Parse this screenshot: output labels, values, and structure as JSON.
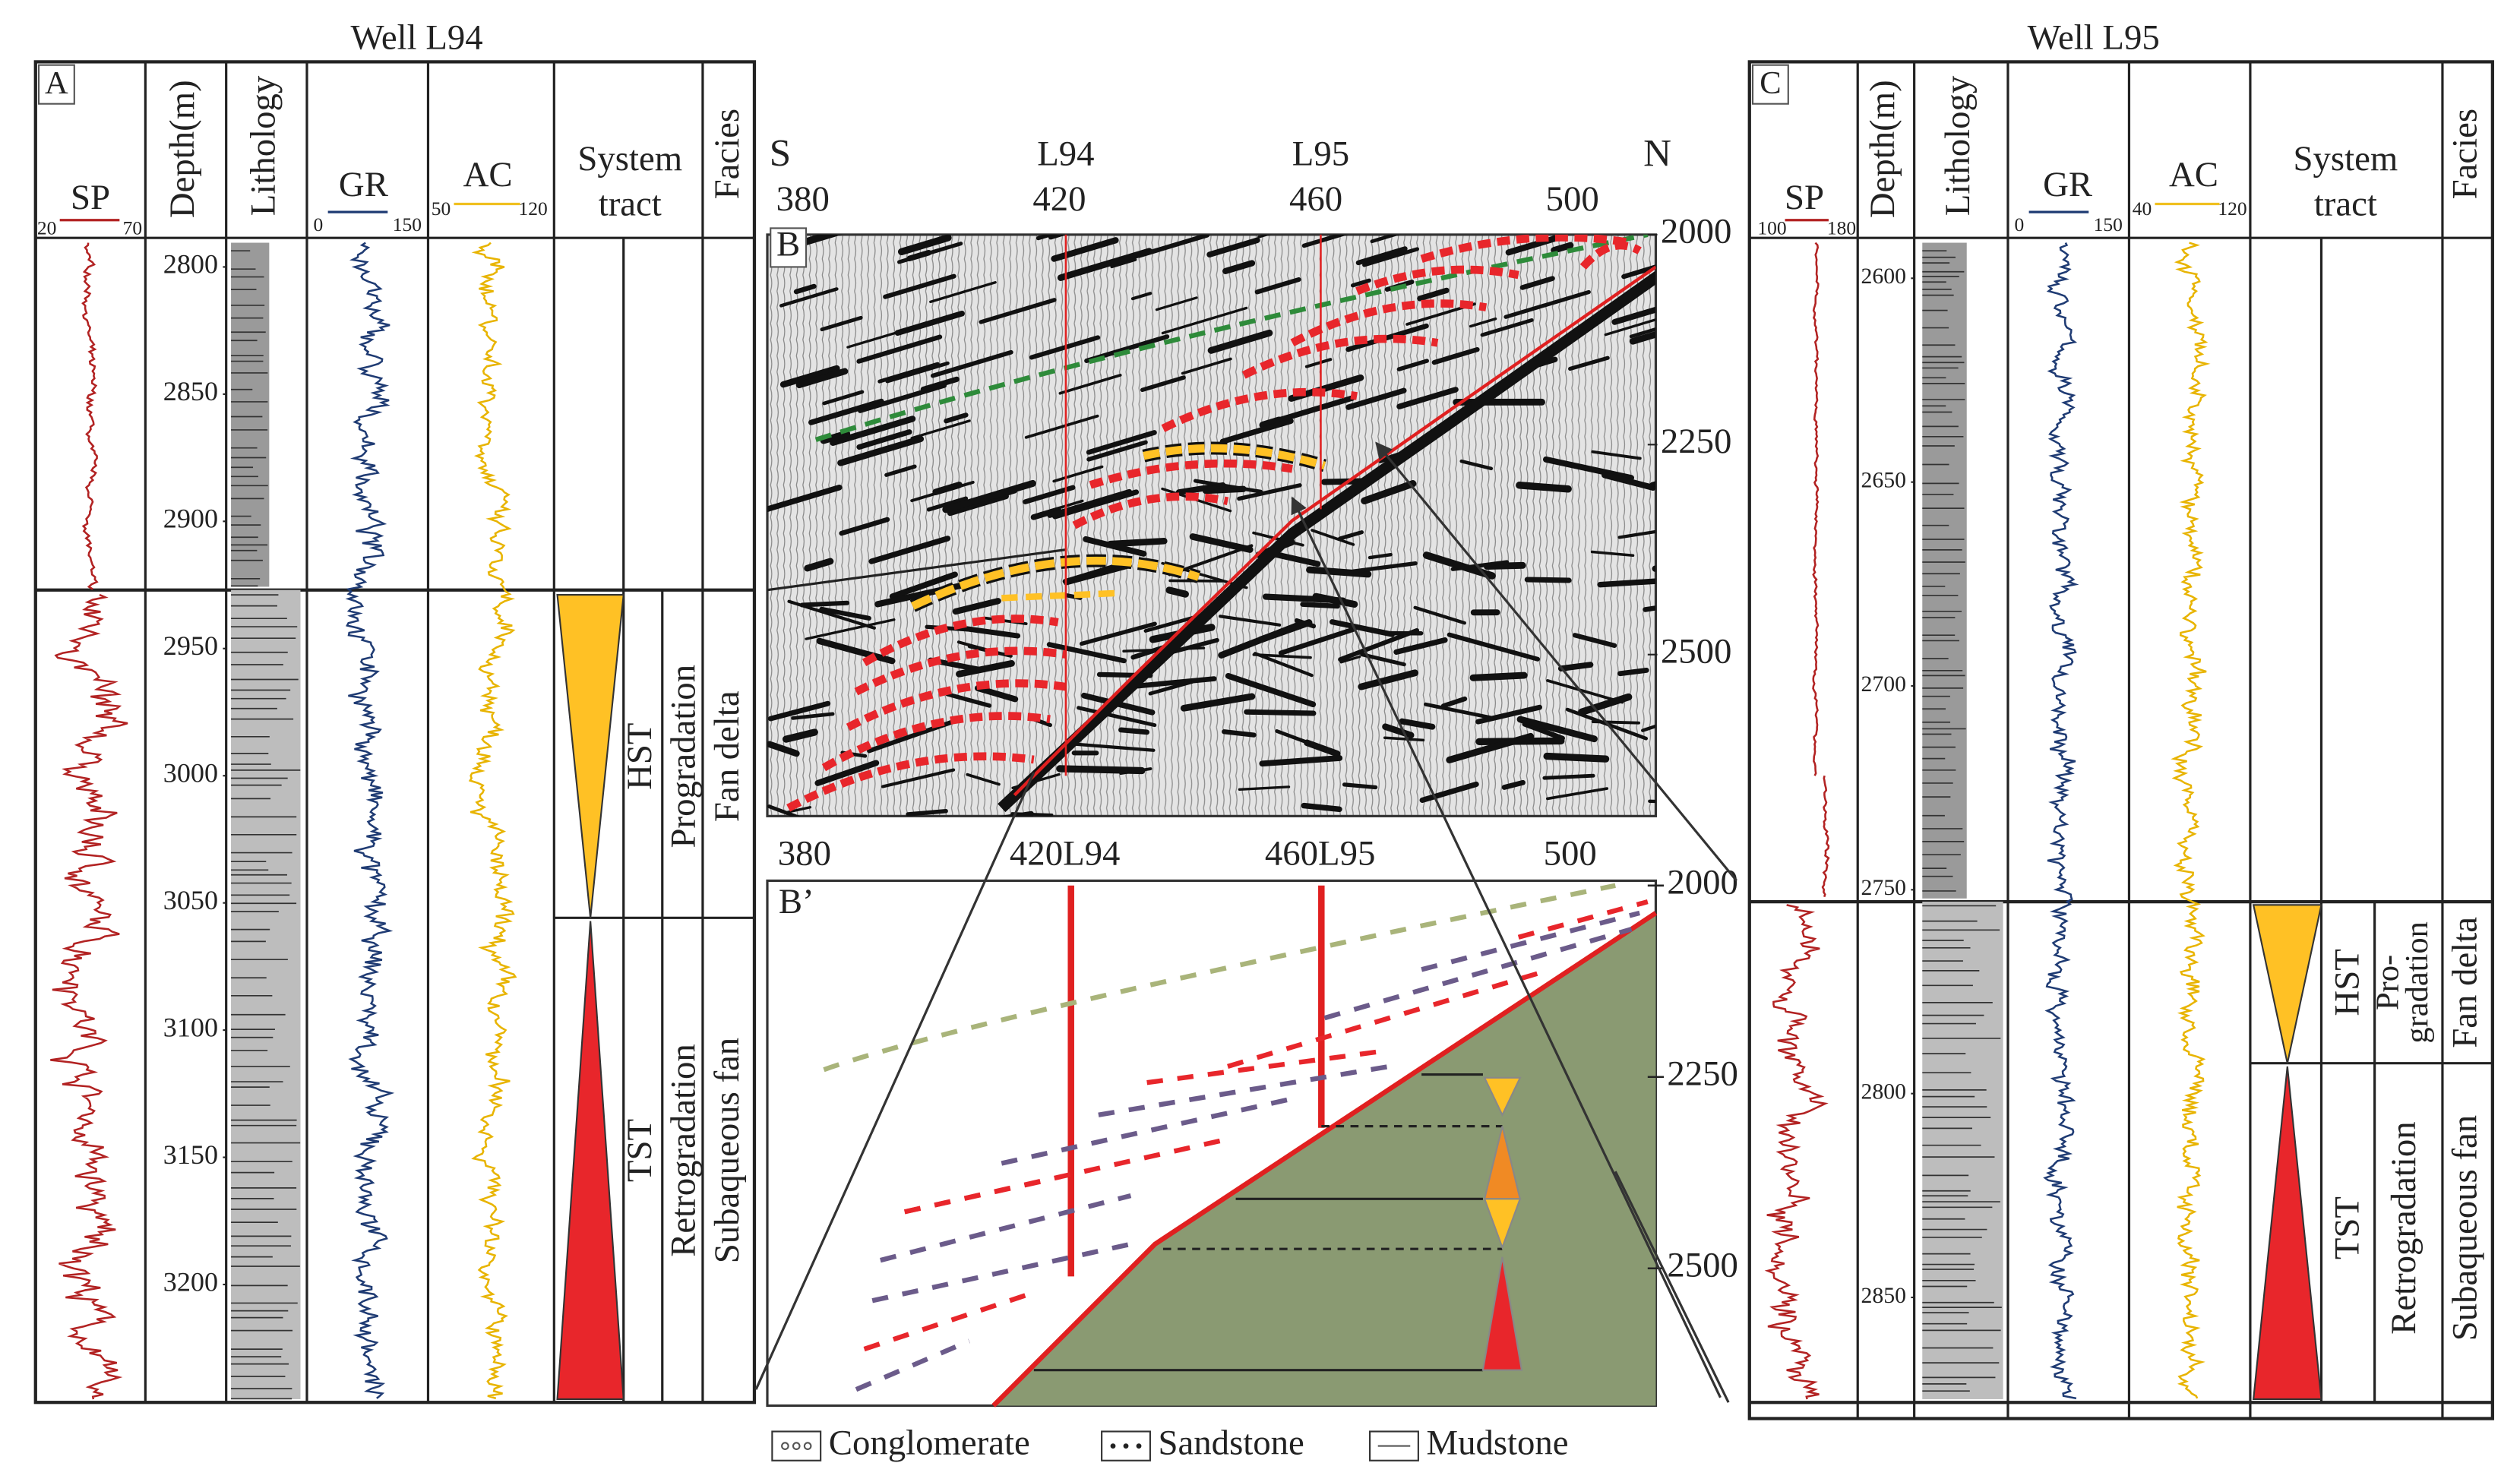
{
  "panel_a": {
    "title": "Well L94",
    "label": "A",
    "sp": "SP",
    "sp_range": [
      20,
      70
    ],
    "depth_header": "Depth(m)",
    "lithology_header": "Lithology",
    "gr": "GR",
    "gr_range": [
      0,
      150
    ],
    "ac": "AC",
    "ac_range": [
      50,
      120
    ],
    "system_tract_header": [
      "System",
      "tract"
    ],
    "facies_header": "Facies",
    "depth_ticks": [
      2800,
      2850,
      2900,
      2950,
      3000,
      3050,
      3100,
      3150,
      3200
    ],
    "system_tracts": [
      "HST",
      "TST"
    ],
    "trends": [
      "Progradation",
      "Retrogradation"
    ],
    "facies": [
      "Fan delta",
      "Subaqueous fan"
    ]
  },
  "panel_b": {
    "label": "B",
    "south": "S",
    "north": "N",
    "wells": [
      "L94",
      "L95"
    ],
    "x_ticks": [
      380,
      420,
      460,
      500
    ],
    "depth_ticks": [
      2000,
      2250,
      2500
    ]
  },
  "panel_b_prime": {
    "label": "B’",
    "wells": [
      "L94",
      "L95"
    ],
    "x_ticks": [
      380,
      420,
      460,
      500
    ],
    "depth_ticks": [
      2000,
      2250,
      2500
    ]
  },
  "panel_c": {
    "title": "Well L95",
    "label": "C",
    "sp": "SP",
    "sp_range": [
      100,
      180
    ],
    "depth_header": "Depth(m)",
    "lithology_header": "Lithology",
    "gr": "GR",
    "gr_range": [
      0,
      150
    ],
    "ac": "AC",
    "ac_range": [
      40,
      120
    ],
    "system_tract_header": [
      "System",
      "tract"
    ],
    "facies_header": "Facies",
    "depth_ticks": [
      2600,
      2650,
      2700,
      2750,
      2800,
      2850
    ],
    "system_tracts": [
      "HST",
      "TST"
    ],
    "trends": [
      [
        "Pro-",
        "gradation"
      ],
      "Retrogradation"
    ],
    "facies": [
      "Fan delta",
      "Subaqueous fan"
    ]
  },
  "legend": [
    "Conglomerate",
    "Sandstone",
    "Mudstone"
  ]
}
